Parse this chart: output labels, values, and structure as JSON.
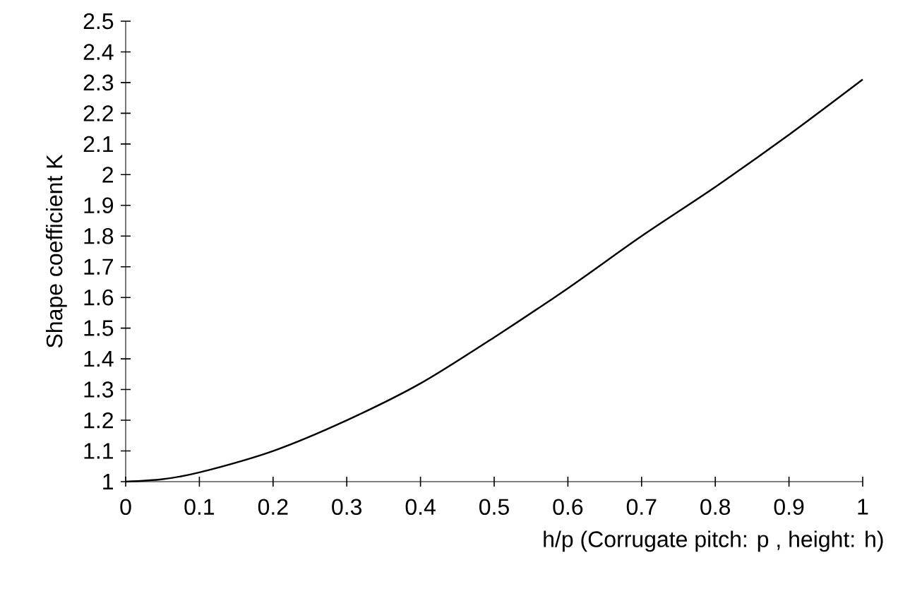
{
  "chart_data": {
    "type": "line",
    "xlabel": "h/p (Corrugate pitch: p , height: h)",
    "ylabel": "Shape coefficient K",
    "x": [
      0,
      0.05,
      0.1,
      0.2,
      0.3,
      0.4,
      0.5,
      0.6,
      0.7,
      0.8,
      0.9,
      1.0
    ],
    "series": [
      {
        "color": "#000000",
        "values": [
          1,
          1.008,
          1.03,
          1.1,
          1.2,
          1.32,
          1.47,
          1.63,
          1.8,
          1.96,
          2.13,
          2.31
        ]
      }
    ],
    "xlim": [
      0,
      1
    ],
    "ylim": [
      1,
      2.5
    ],
    "xticks": [
      0,
      0.1,
      0.2,
      0.3,
      0.4,
      0.5,
      0.6,
      0.7,
      0.8,
      0.9,
      1
    ],
    "yticks": [
      1,
      1.1,
      1.2,
      1.3,
      1.4,
      1.5,
      1.6,
      1.7,
      1.8,
      1.9,
      2,
      2.1,
      2.2,
      2.3,
      2.4,
      2.5
    ]
  }
}
